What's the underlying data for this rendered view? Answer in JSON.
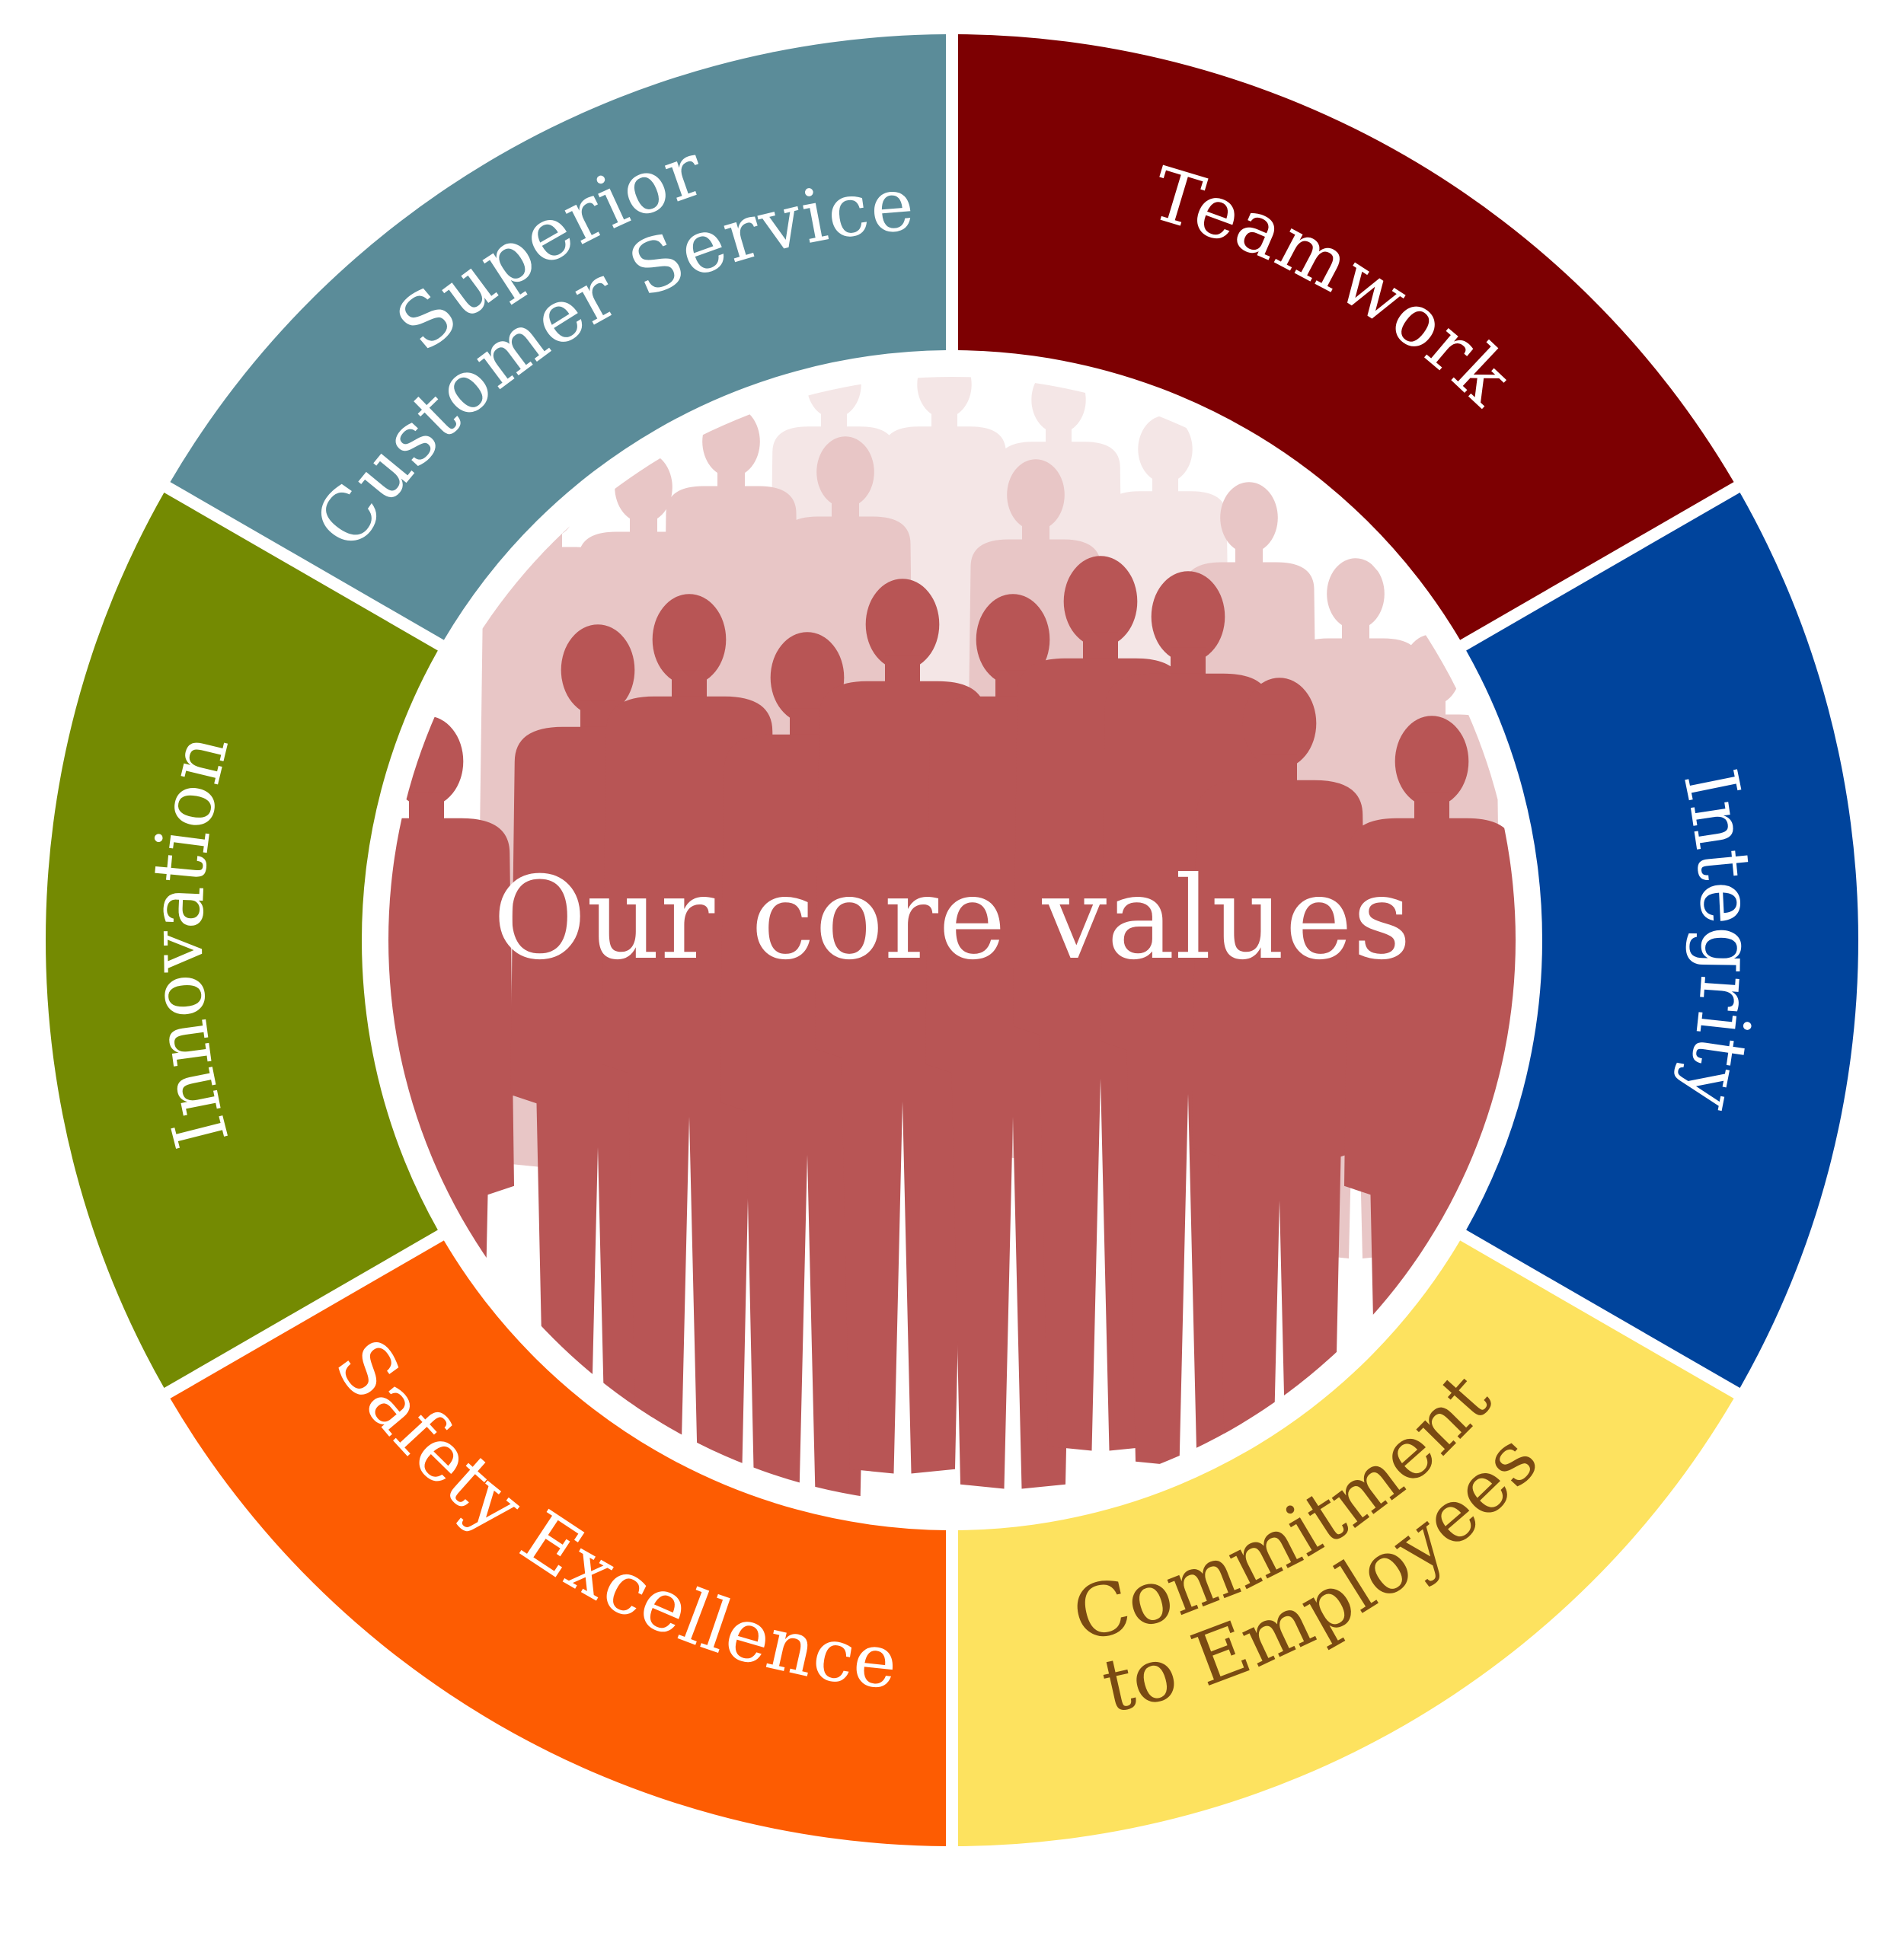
{
  "center": {
    "title": "Our core values"
  },
  "values": [
    {
      "id": "customer-service",
      "lines": [
        "Superior",
        "Customer Service"
      ],
      "color": "#5b8c99",
      "text_color": "#ffffff"
    },
    {
      "id": "teamwork",
      "lines": [
        "Teamwork"
      ],
      "color": "#7d0002",
      "text_color": "#ffffff"
    },
    {
      "id": "integrity",
      "lines": [
        "Integrity"
      ],
      "color": "#00449c",
      "text_color": "#ffffff"
    },
    {
      "id": "commitment",
      "lines": [
        "Commitment",
        "to Employees"
      ],
      "color": "#fde25f",
      "text_color": "#7a4a12"
    },
    {
      "id": "safety",
      "lines": [
        "Safety Excellence"
      ],
      "color": "#fd5c02",
      "text_color": "#ffffff"
    },
    {
      "id": "innovation",
      "lines": [
        "Innovation"
      ],
      "color": "#748a02",
      "text_color": "#ffffff"
    }
  ],
  "colors": {
    "crowd_front": "#b85555",
    "crowd_back": "#e8c6c6",
    "crowd_far": "#f4e6e6",
    "center_text": "#ffffff"
  }
}
